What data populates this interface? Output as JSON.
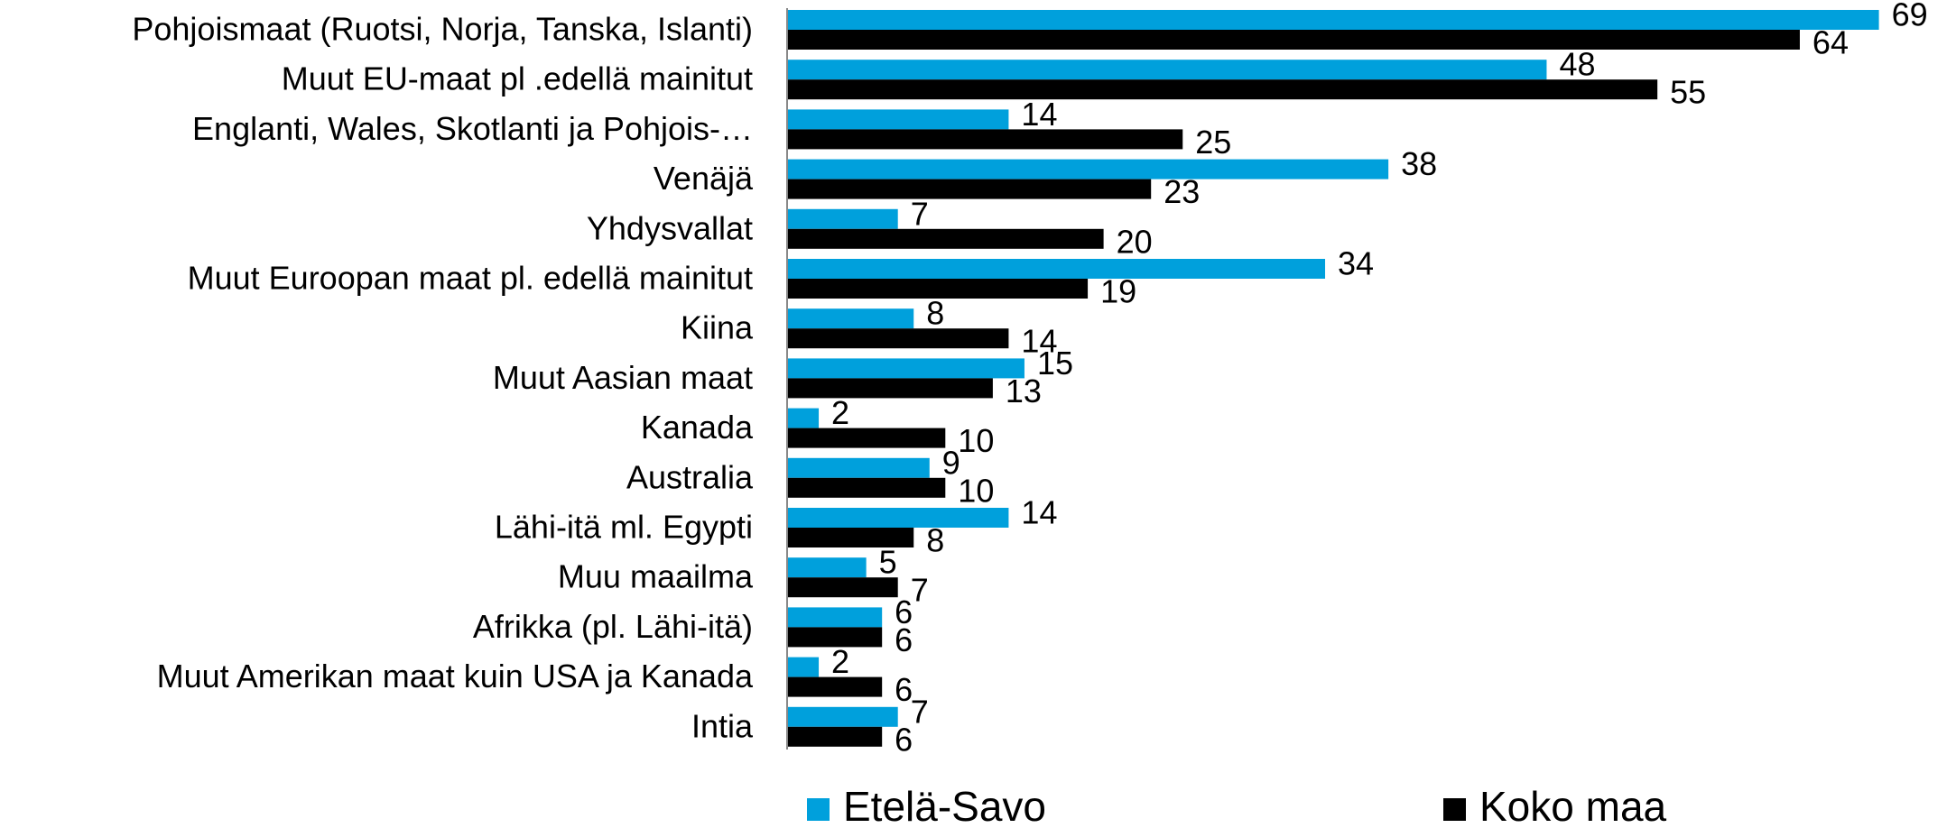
{
  "chart_data": {
    "type": "bar",
    "orientation": "horizontal",
    "categories": [
      "Pohjoismaat (Ruotsi, Norja, Tanska, Islanti)",
      "Muut EU-maat pl .edellä mainitut",
      "Englanti, Wales, Skotlanti ja Pohjois-…",
      "Venäjä",
      "Yhdysvallat",
      "Muut Euroopan maat pl. edellä mainitut",
      "Kiina",
      "Muut Aasian maat",
      "Kanada",
      "Australia",
      "Lähi-itä ml. Egypti",
      "Muu maailma",
      "Afrikka (pl. Lähi-itä)",
      "Muut Amerikan maat kuin USA ja Kanada",
      "Intia"
    ],
    "series": [
      {
        "name": "Etelä-Savo",
        "color": "#00a0dc",
        "values": [
          69,
          48,
          14,
          38,
          7,
          34,
          8,
          15,
          2,
          9,
          14,
          5,
          6,
          2,
          7
        ]
      },
      {
        "name": "Koko maa",
        "color": "#000000",
        "values": [
          64,
          55,
          25,
          23,
          20,
          19,
          14,
          13,
          10,
          10,
          8,
          7,
          6,
          6,
          6
        ]
      }
    ],
    "legend": "bottom"
  }
}
